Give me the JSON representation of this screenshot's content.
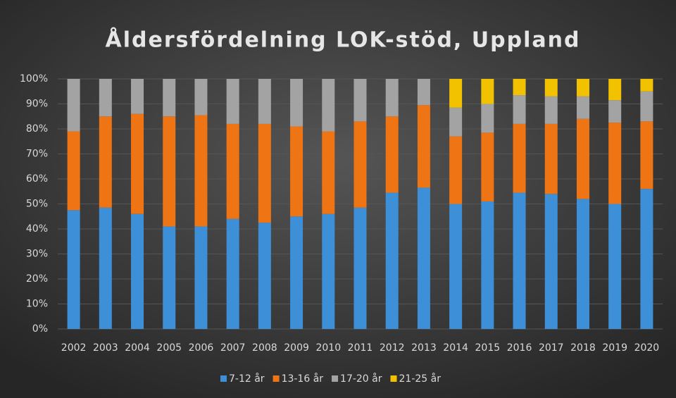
{
  "chart_data": {
    "type": "stacked_bar",
    "title": "Åldersfördelning LOK-stöd, Uppland",
    "categories": [
      "2002",
      "2003",
      "2004",
      "2005",
      "2006",
      "2007",
      "2008",
      "2009",
      "2010",
      "2011",
      "2012",
      "2013",
      "2014",
      "2015",
      "2016",
      "2017",
      "2018",
      "2019",
      "2020"
    ],
    "series": [
      {
        "name": "7-12 år",
        "color": "#3d8fd8",
        "values": [
          47.5,
          48.5,
          46,
          41,
          41,
          44,
          42.5,
          45,
          46,
          48.5,
          54.5,
          56.5,
          50,
          51,
          54.5,
          54,
          52,
          50,
          56
        ]
      },
      {
        "name": "13-16 år",
        "color": "#ee7414",
        "values": [
          31.5,
          36.5,
          40,
          44,
          44.5,
          38,
          39.5,
          36,
          33,
          34.5,
          30.5,
          33,
          27,
          27.5,
          27.5,
          28,
          32,
          32.5,
          27
        ]
      },
      {
        "name": "17-20 år",
        "color": "#a3a3a3",
        "values": [
          21,
          15,
          14,
          15,
          14.5,
          18,
          18,
          19,
          21,
          17,
          15,
          10.5,
          11.5,
          11.5,
          11.5,
          11,
          9,
          9,
          12
        ]
      },
      {
        "name": "21-25 år",
        "color": "#f2c200",
        "values": [
          0,
          0,
          0,
          0,
          0,
          0,
          0,
          0,
          0,
          0,
          0,
          0,
          11.5,
          10,
          6.5,
          7,
          7,
          8.5,
          5
        ]
      }
    ],
    "ylim": [
      0,
      100
    ],
    "yticks": [
      {
        "value": 0,
        "label": "0%"
      },
      {
        "value": 10,
        "label": "10%"
      },
      {
        "value": 20,
        "label": "20%"
      },
      {
        "value": 30,
        "label": "30%"
      },
      {
        "value": 40,
        "label": "40%"
      },
      {
        "value": 50,
        "label": "50%"
      },
      {
        "value": 60,
        "label": "60%"
      },
      {
        "value": 70,
        "label": "70%"
      },
      {
        "value": 80,
        "label": "80%"
      },
      {
        "value": 90,
        "label": "90%"
      },
      {
        "value": 100,
        "label": "100%"
      }
    ],
    "grid": true,
    "legend": "bottom"
  }
}
